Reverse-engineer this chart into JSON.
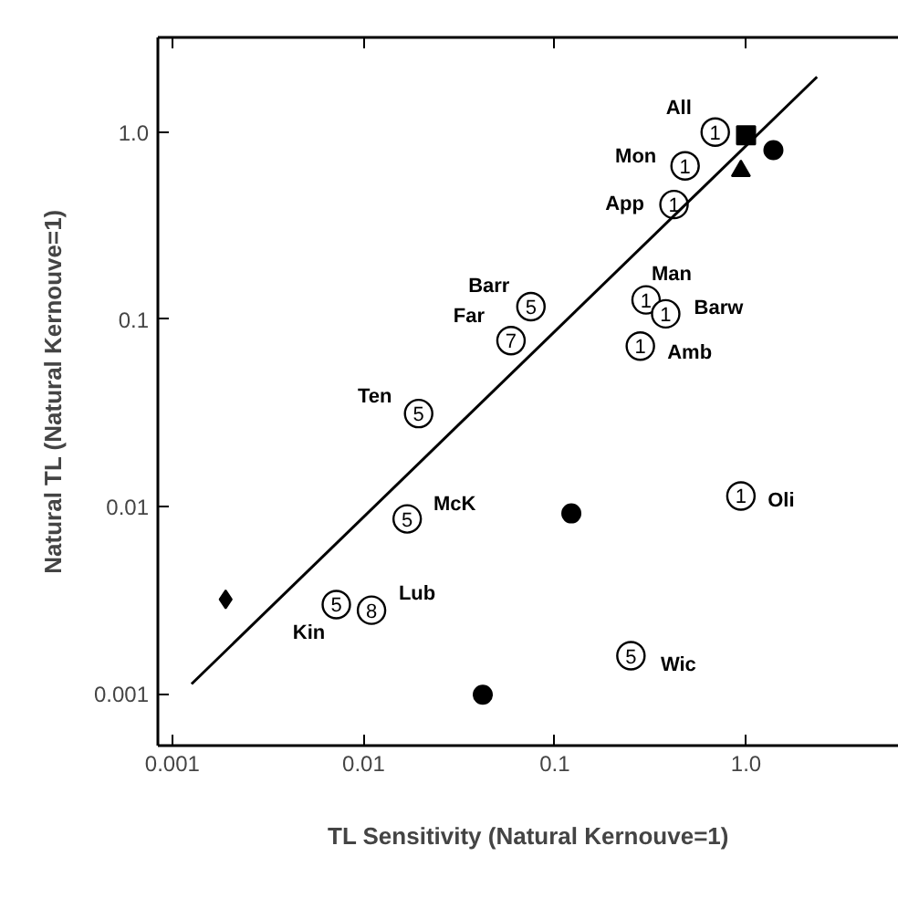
{
  "chart_data": {
    "type": "scatter",
    "xlabel": "TL Sensitivity (Natural Kernouve=1)",
    "ylabel": "Natural TL (Natural Kernouve=1)",
    "log": "xy",
    "grid": false,
    "xlim": [
      0.00084,
      6.3
    ],
    "ylim": [
      0.00053,
      3.2
    ],
    "xticks": [
      0.001,
      0.01,
      0.1,
      {
        "value": 1,
        "label": "1.0"
      }
    ],
    "yticks": [
      0.001,
      0.01,
      0.1,
      {
        "value": 1,
        "label": "1.0"
      }
    ],
    "series": [
      {
        "name": "1",
        "color": "#000000",
        "marker": "circle",
        "x": [
          0.69,
          0.48,
          0.42,
          0.3,
          0.38,
          0.28,
          0.94
        ],
        "values": [
          1.0,
          0.66,
          0.41,
          0.127,
          0.107,
          0.072,
          0.0114
        ]
      },
      {
        "name": "5",
        "color": "#000000",
        "marker": "circle",
        "x": [
          0.075,
          0.0194,
          0.0169,
          0.0072,
          0.25
        ],
        "values": [
          0.117,
          0.0314,
          0.0086,
          0.003,
          0.0016
        ]
      },
      {
        "name": "7",
        "color": "#000000",
        "marker": "circle",
        "x": [
          0.059
        ],
        "values": [
          0.077
        ]
      },
      {
        "name": "8",
        "color": "#000000",
        "marker": "circle",
        "x": [
          0.011
        ],
        "values": [
          0.0028
        ]
      },
      {
        "color": "#000000",
        "marker": "square",
        "x": [
          1.0
        ],
        "values": [
          0.96
        ]
      },
      {
        "color": "#000000",
        "marker": "circle",
        "x": [
          1.39,
          0.122,
          0.042
        ],
        "values": [
          0.8,
          0.0092,
          0.00099
        ]
      },
      {
        "color": "#000000",
        "marker": "triangle",
        "x": [
          0.94
        ],
        "values": [
          0.62
        ]
      },
      {
        "color": "#000000",
        "marker": "diamond",
        "x": [
          0.0019
        ],
        "values": [
          0.0032
        ]
      },
      {
        "type": "line",
        "color": "#000000",
        "marker": "none",
        "x": [
          0.00126,
          2.35
        ],
        "values": [
          0.00113,
          1.97
        ]
      }
    ],
    "annotations": [
      {
        "text": "All",
        "x": 0.69,
        "y": 1.0
      },
      {
        "text": "Mon",
        "x": 0.48,
        "y": 0.66
      },
      {
        "text": "App",
        "x": 0.42,
        "y": 0.41
      },
      {
        "text": "Man",
        "x": 0.3,
        "y": 0.127
      },
      {
        "text": "Barw",
        "x": 0.38,
        "y": 0.107
      },
      {
        "text": "Amb",
        "x": 0.28,
        "y": 0.072
      },
      {
        "text": "Oli",
        "x": 0.94,
        "y": 0.0114
      },
      {
        "text": "Barr",
        "x": 0.075,
        "y": 0.117
      },
      {
        "text": "Far",
        "x": 0.059,
        "y": 0.077
      },
      {
        "text": "Ten",
        "x": 0.0194,
        "y": 0.0314
      },
      {
        "text": "McK",
        "x": 0.0169,
        "y": 0.0086
      },
      {
        "text": "Lub",
        "x": 0.011,
        "y": 0.0028
      },
      {
        "text": "Kin",
        "x": 0.0072,
        "y": 0.003
      },
      {
        "text": "Wic",
        "x": 0.25,
        "y": 0.0016
      }
    ]
  }
}
